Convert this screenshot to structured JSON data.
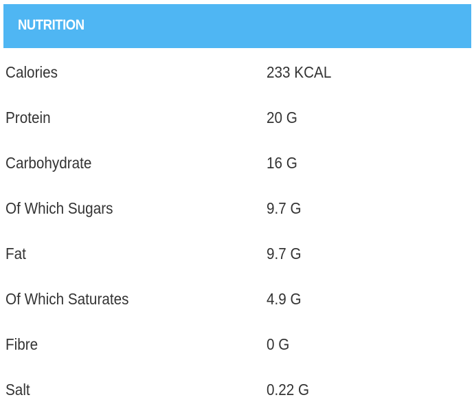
{
  "header": {
    "title": "NUTRITION",
    "color": "#4fb6f3"
  },
  "rows": [
    {
      "label": "Calories",
      "value": "233 KCAL"
    },
    {
      "label": "Protein",
      "value": "20 G"
    },
    {
      "label": "Carbohydrate",
      "value": "16 G"
    },
    {
      "label": "Of Which Sugars",
      "value": "9.7 G"
    },
    {
      "label": "Fat",
      "value": "9.7 G"
    },
    {
      "label": "Of Which Saturates",
      "value": "4.9 G"
    },
    {
      "label": "Fibre",
      "value": "0 G"
    },
    {
      "label": "Salt",
      "value": "0.22 G"
    }
  ]
}
